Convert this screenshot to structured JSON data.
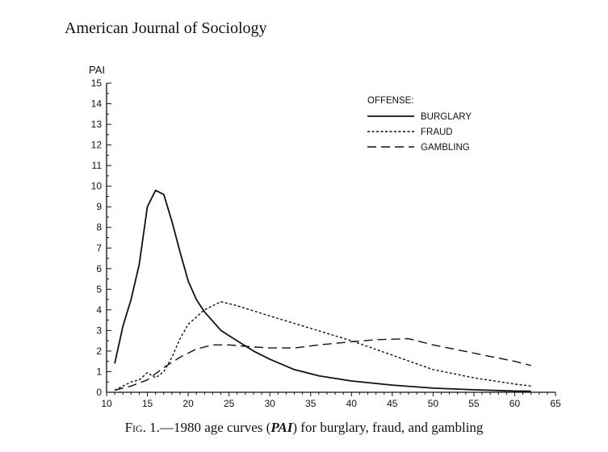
{
  "running_head": "American Journal of Sociology",
  "caption": {
    "fig_label": "Fig. 1.",
    "dash": "—",
    "pre": "1980 age curves (",
    "italic": "PAI",
    "post": ") for burglary, fraud, and gambling"
  },
  "chart_data": {
    "type": "line",
    "title": "",
    "xlabel": "",
    "ylabel": "PAI",
    "xlim": [
      10,
      65
    ],
    "ylim": [
      0,
      15
    ],
    "x_ticks": [
      10,
      15,
      20,
      25,
      30,
      35,
      40,
      45,
      50,
      55,
      60,
      65
    ],
    "y_ticks": [
      0,
      1,
      2,
      3,
      4,
      5,
      6,
      7,
      8,
      9,
      10,
      11,
      12,
      13,
      14,
      15
    ],
    "grid": false,
    "legend": {
      "title": "OFFENSE:",
      "position": "top-right"
    },
    "series": [
      {
        "name": "BURGLARY",
        "style": "solid",
        "x": [
          11,
          12,
          13,
          14,
          15,
          16,
          17,
          18,
          19,
          20,
          21,
          22,
          24,
          26,
          28,
          30,
          33,
          36,
          40,
          45,
          50,
          55,
          60,
          62
        ],
        "y": [
          1.4,
          3.2,
          4.5,
          6.2,
          9.0,
          9.8,
          9.6,
          8.3,
          6.8,
          5.4,
          4.5,
          3.9,
          3.0,
          2.5,
          2.0,
          1.6,
          1.1,
          0.8,
          0.55,
          0.35,
          0.2,
          0.12,
          0.06,
          0.05
        ]
      },
      {
        "name": "FRAUD",
        "style": "dotted",
        "x": [
          11,
          13,
          14,
          15,
          16,
          17,
          18,
          19,
          20,
          22,
          24,
          26,
          30,
          35,
          40,
          45,
          50,
          55,
          60,
          62
        ],
        "y": [
          0.1,
          0.5,
          0.6,
          0.95,
          0.7,
          1.0,
          1.7,
          2.6,
          3.3,
          4.0,
          4.4,
          4.2,
          3.7,
          3.1,
          2.5,
          1.8,
          1.1,
          0.7,
          0.4,
          0.3
        ]
      },
      {
        "name": "GAMBLING",
        "style": "dashed",
        "x": [
          11,
          13,
          15,
          17,
          19,
          21,
          23,
          25,
          28,
          30,
          33,
          36,
          40,
          43,
          47,
          50,
          55,
          60,
          62
        ],
        "y": [
          0.1,
          0.3,
          0.6,
          1.2,
          1.7,
          2.1,
          2.3,
          2.3,
          2.2,
          2.15,
          2.15,
          2.3,
          2.45,
          2.55,
          2.6,
          2.3,
          1.9,
          1.5,
          1.3
        ]
      }
    ]
  }
}
